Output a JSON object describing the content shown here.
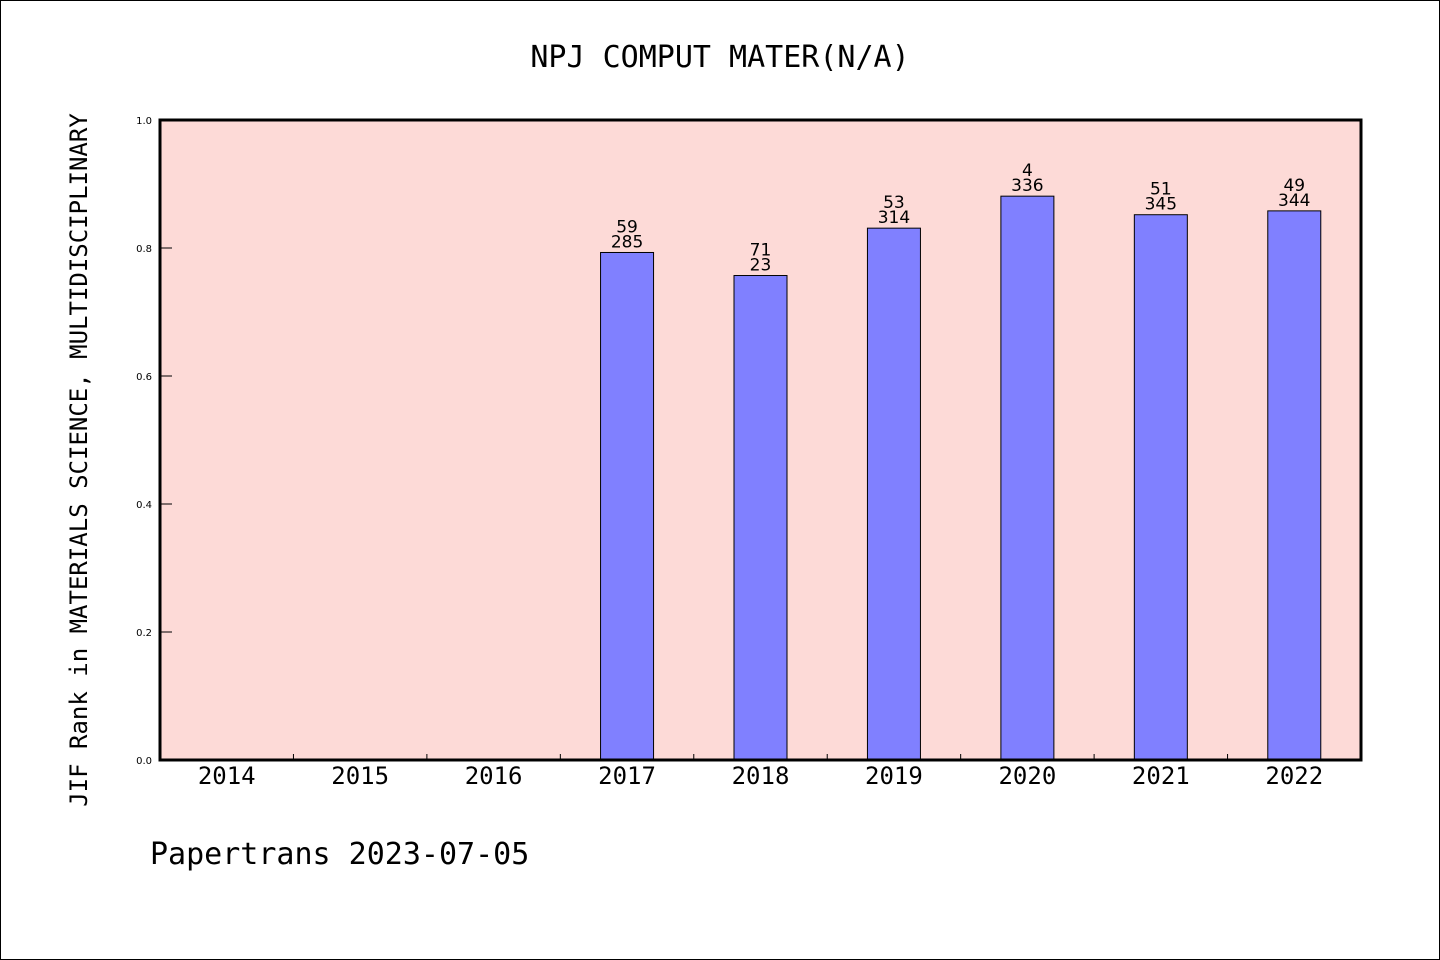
{
  "chart_data": {
    "type": "bar",
    "title": "NPJ COMPUT MATER(N/A)",
    "ylabel": "JIF Rank in MATERIALS SCIENCE, MULTIDISCIPLINARY",
    "xlabel": "",
    "categories": [
      "2014",
      "2015",
      "2016",
      "2017",
      "2018",
      "2019",
      "2020",
      "2021",
      "2022"
    ],
    "values": [
      null,
      null,
      null,
      0.793,
      0.757,
      0.831,
      0.881,
      0.852,
      0.858
    ],
    "labels_top": [
      "",
      "",
      "",
      "59",
      "71",
      "53",
      "4",
      "51",
      "49"
    ],
    "labels_bottom": [
      "",
      "",
      "",
      "285",
      "23",
      "314",
      "336",
      "345",
      "344"
    ],
    "ylim": [
      0,
      1.0
    ],
    "yticks": [
      "0.0",
      "0.2",
      "0.4",
      "0.6",
      "0.8",
      "1.0"
    ],
    "grid": false,
    "colors": {
      "plot_background": "#fddad7",
      "bar_fill": "#8080ff"
    }
  },
  "footer": "Papertrans 2023-07-05"
}
